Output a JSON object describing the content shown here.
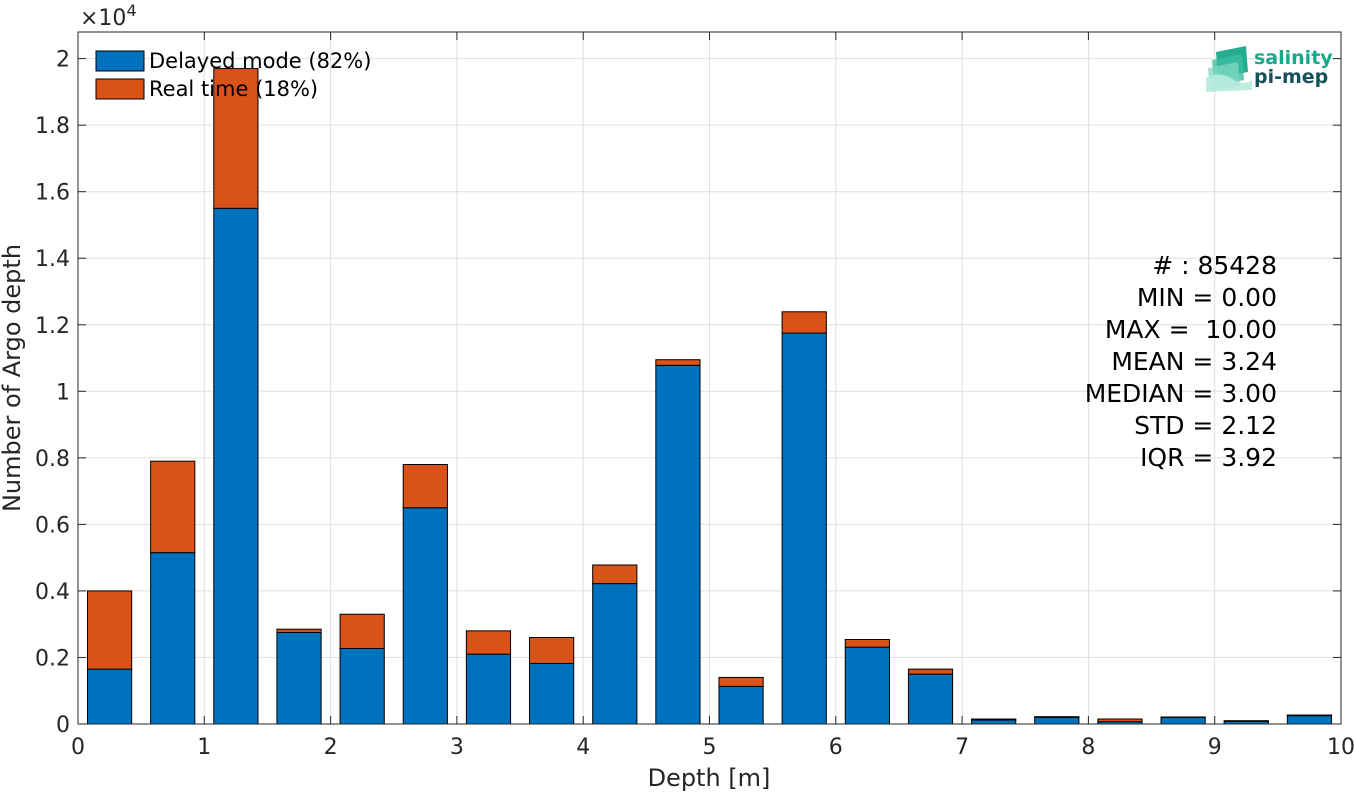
{
  "chart_data": {
    "type": "bar",
    "stacked": true,
    "x": [
      0.25,
      0.75,
      1.25,
      1.75,
      2.25,
      2.75,
      3.25,
      3.75,
      4.25,
      4.75,
      5.25,
      5.75,
      6.25,
      6.75,
      7.25,
      7.75,
      8.25,
      8.75,
      9.25,
      9.75
    ],
    "series": [
      {
        "name": "Delayed mode (82%)",
        "color": "#0072BD",
        "values": [
          1650,
          5150,
          15500,
          2750,
          2270,
          6500,
          2100,
          1820,
          4220,
          10780,
          1130,
          11750,
          2310,
          1500,
          120,
          200,
          70,
          200,
          80,
          250
        ]
      },
      {
        "name": "Real time (18%)",
        "color": "#D95319",
        "values": [
          2350,
          2750,
          4200,
          100,
          1030,
          1300,
          700,
          780,
          560,
          170,
          270,
          640,
          230,
          150,
          30,
          20,
          80,
          10,
          20,
          20
        ]
      }
    ],
    "xlabel": "Depth [m]",
    "ylabel": "Number of Argo depth",
    "xlim": [
      0,
      10
    ],
    "ylim": [
      0,
      20800
    ],
    "xticks": [
      "0",
      "1",
      "2",
      "3",
      "4",
      "5",
      "6",
      "7",
      "8",
      "9",
      "10"
    ],
    "yticks": [
      "0",
      "0.2",
      "0.4",
      "0.6",
      "0.8",
      "1",
      "1.2",
      "1.4",
      "1.6",
      "1.8",
      "2"
    ],
    "y_exponent": "×10",
    "y_exponent_power": "4",
    "grid": true,
    "legend_position": "top-left",
    "stats": [
      "# : 85428",
      "MIN = 0.00",
      "MAX =  10.00",
      "MEAN = 3.24",
      "MEDIAN = 3.00",
      "STD = 2.12",
      "IQR = 3.92"
    ]
  },
  "logo": {
    "line1": "salinity",
    "line2": "pi-mep",
    "color1": "#1aa88a",
    "color2": "#16505a"
  }
}
